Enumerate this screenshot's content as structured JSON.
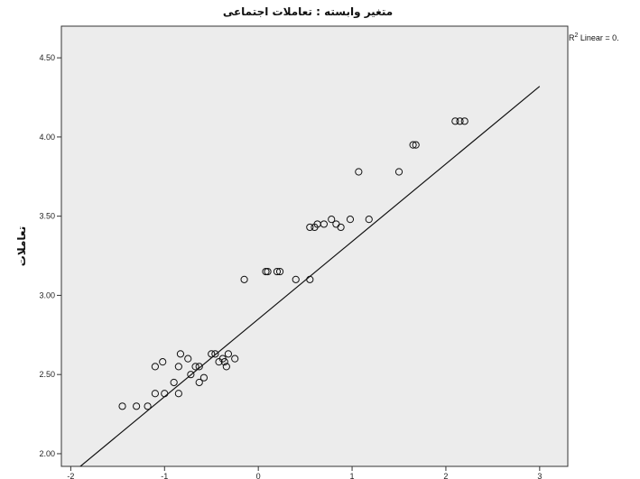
{
  "chart_data": {
    "type": "scatter",
    "title": "متغیر وابسته : تعاملات اجتماعی",
    "xlabel": "",
    "ylabel": "تعاملات",
    "xlim": [
      -2.1,
      3.3
    ],
    "ylim": [
      1.92,
      4.7
    ],
    "x_ticks": [
      -2,
      -1,
      0,
      1,
      2,
      3
    ],
    "x_tick_labels": [
      "-2",
      "-1",
      "0",
      "1",
      "2",
      "3"
    ],
    "y_ticks": [
      2.0,
      2.5,
      3.0,
      3.5,
      4.0,
      4.5
    ],
    "y_tick_labels": [
      "2.00",
      "2.50",
      "3.00",
      "3.50",
      "4.00",
      "4.50"
    ],
    "grid": false,
    "fit_line": {
      "slope": 0.49,
      "intercept": 2.85,
      "x_range": [
        -2.0,
        3.0
      ]
    },
    "r2_label": {
      "prefix": "R",
      "sup": "2",
      "text": " Linear = 0."
    },
    "points": [
      {
        "x": -1.45,
        "y": 2.3
      },
      {
        "x": -1.3,
        "y": 2.3
      },
      {
        "x": -1.18,
        "y": 2.3
      },
      {
        "x": -1.1,
        "y": 2.38
      },
      {
        "x": -1.0,
        "y": 2.38
      },
      {
        "x": -0.85,
        "y": 2.38
      },
      {
        "x": -1.1,
        "y": 2.55
      },
      {
        "x": -1.02,
        "y": 2.58
      },
      {
        "x": -0.9,
        "y": 2.45
      },
      {
        "x": -0.85,
        "y": 2.55
      },
      {
        "x": -0.83,
        "y": 2.63
      },
      {
        "x": -0.75,
        "y": 2.6
      },
      {
        "x": -0.72,
        "y": 2.5
      },
      {
        "x": -0.67,
        "y": 2.55
      },
      {
        "x": -0.63,
        "y": 2.55
      },
      {
        "x": -0.63,
        "y": 2.45
      },
      {
        "x": -0.58,
        "y": 2.48
      },
      {
        "x": -0.5,
        "y": 2.63
      },
      {
        "x": -0.46,
        "y": 2.63
      },
      {
        "x": -0.42,
        "y": 2.58
      },
      {
        "x": -0.38,
        "y": 2.6
      },
      {
        "x": -0.36,
        "y": 2.58
      },
      {
        "x": -0.34,
        "y": 2.55
      },
      {
        "x": -0.32,
        "y": 2.63
      },
      {
        "x": -0.25,
        "y": 2.6
      },
      {
        "x": -0.15,
        "y": 3.1
      },
      {
        "x": 0.08,
        "y": 3.15
      },
      {
        "x": 0.1,
        "y": 3.15
      },
      {
        "x": 0.2,
        "y": 3.15
      },
      {
        "x": 0.23,
        "y": 3.15
      },
      {
        "x": 0.4,
        "y": 3.1
      },
      {
        "x": 0.55,
        "y": 3.1
      },
      {
        "x": 0.55,
        "y": 3.43
      },
      {
        "x": 0.6,
        "y": 3.43
      },
      {
        "x": 0.63,
        "y": 3.45
      },
      {
        "x": 0.7,
        "y": 3.45
      },
      {
        "x": 0.78,
        "y": 3.48
      },
      {
        "x": 0.83,
        "y": 3.45
      },
      {
        "x": 0.88,
        "y": 3.43
      },
      {
        "x": 0.98,
        "y": 3.48
      },
      {
        "x": 1.07,
        "y": 3.78
      },
      {
        "x": 1.18,
        "y": 3.48
      },
      {
        "x": 1.5,
        "y": 3.78
      },
      {
        "x": 1.65,
        "y": 3.95
      },
      {
        "x": 1.68,
        "y": 3.95
      },
      {
        "x": 2.1,
        "y": 4.1
      },
      {
        "x": 2.15,
        "y": 4.1
      },
      {
        "x": 2.2,
        "y": 4.1
      }
    ]
  }
}
